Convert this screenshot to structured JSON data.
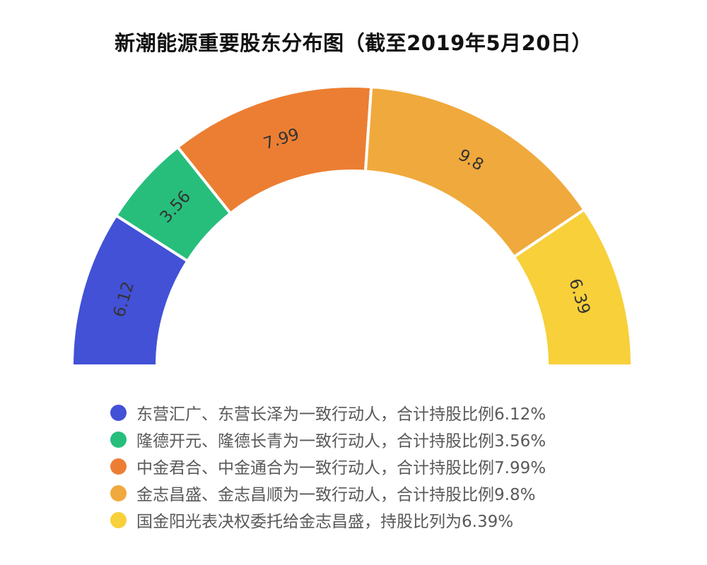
{
  "title": "新潮能源重要股东分布图（截至2019年5月20日）",
  "chart_data": {
    "type": "pie",
    "subtype": "semi-donut",
    "series": [
      {
        "label": "6.12",
        "value": 6.12,
        "color": "#4251D6",
        "legend": "东营汇广、东营长泽为一致行动人，合计持股比例6.12%"
      },
      {
        "label": "3.56",
        "value": 3.56,
        "color": "#27BE7C",
        "legend": "隆德开元、隆德长青为一致行动人，合计持股比例3.56%"
      },
      {
        "label": "7.99",
        "value": 7.99,
        "color": "#EC7E33",
        "legend": "中金君合、中金通合为一致行动人，合计持股比例7.99%"
      },
      {
        "label": "9.8",
        "value": 9.8,
        "color": "#F0A93C",
        "legend": "金志昌盛、金志昌顺为一致行动人，合计持股比例9.8%"
      },
      {
        "label": "6.39",
        "value": 6.39,
        "color": "#F7D03A",
        "legend": "国金阳光表决权委托给金志昌盛，持股比列为6.39%"
      }
    ],
    "legend_position": "bottom"
  }
}
